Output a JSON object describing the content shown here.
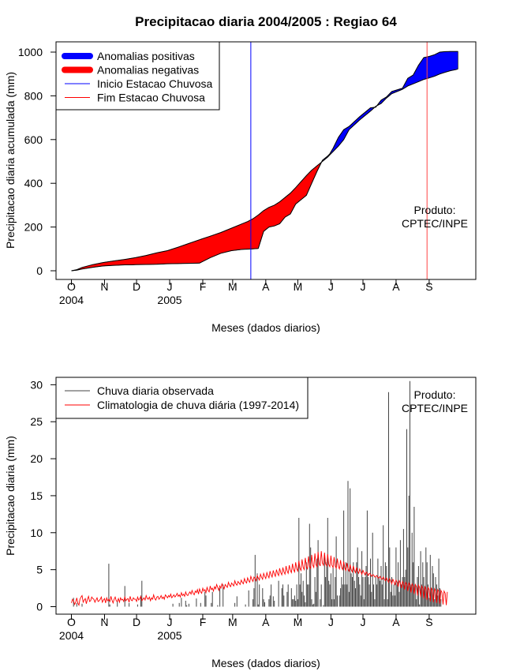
{
  "figure": {
    "title": "Precipitacao diaria 2004/2005 : Regiao 64"
  },
  "chart_data": [
    {
      "type": "area",
      "title": "Precipitacao diaria 2004/2005 : Regiao 64",
      "xlabel": "Meses (dados diarios)",
      "ylabel": "Precipitacao diaria acumulada (mm)",
      "x_unit": "day index since 1 Oct 2004",
      "xlim": [
        0,
        365
      ],
      "ylim": [
        0,
        1000
      ],
      "yticks": [
        0,
        200,
        400,
        600,
        800,
        1000
      ],
      "month_ticks": [
        "O",
        "N",
        "D",
        "J",
        "F",
        "M",
        "A",
        "M",
        "J",
        "J",
        "A",
        "S"
      ],
      "month_positions": [
        0,
        31,
        61,
        92,
        123,
        151,
        182,
        212,
        243,
        273,
        304,
        335
      ],
      "year_labels": [
        {
          "text": "2004",
          "day": 0
        },
        {
          "text": "2005",
          "day": 92
        }
      ],
      "legend": [
        {
          "label": "Anomalias positivas",
          "color": "#0000ff",
          "style": "thick"
        },
        {
          "label": "Anomalias negativas",
          "color": "#ff0000",
          "style": "thick"
        },
        {
          "label": "Inicio Estacao Chuvosa",
          "color": "#0000ff",
          "style": "line"
        },
        {
          "label": "Fim Estacao Chuvosa",
          "color": "#ff0000",
          "style": "line"
        }
      ],
      "legend_position": "top-left",
      "annotation": [
        "Produto:",
        "CPTEC/INPE"
      ],
      "vlines": [
        {
          "name": "Inicio Estacao Chuvosa",
          "day": 168,
          "color": "#0000ff"
        },
        {
          "name": "Fim Estacao Chuvosa",
          "day": 333,
          "color": "#ff4444"
        }
      ],
      "series": [
        {
          "name": "Precipitacao observada acumulada",
          "x": [
            0,
            5,
            10,
            20,
            30,
            40,
            50,
            55,
            60,
            70,
            80,
            90,
            100,
            110,
            120,
            130,
            140,
            150,
            160,
            165,
            170,
            175,
            180,
            185,
            190,
            195,
            200,
            205,
            210,
            220,
            225,
            230,
            235,
            240,
            242,
            245,
            250,
            255,
            260,
            270,
            280,
            285,
            290,
            295,
            300,
            310,
            315,
            320,
            325,
            330,
            335,
            340,
            345,
            350,
            355,
            360,
            362
          ],
          "y": [
            0,
            3,
            8,
            16,
            22,
            25,
            27,
            27,
            28,
            29,
            30,
            32,
            33,
            34,
            35,
            60,
            80,
            92,
            98,
            99,
            100,
            102,
            180,
            200,
            205,
            215,
            245,
            260,
            305,
            345,
            400,
            455,
            505,
            525,
            535,
            560,
            610,
            645,
            660,
            705,
            745,
            748,
            780,
            795,
            820,
            835,
            880,
            895,
            940,
            975,
            980,
            988,
            1000,
            1002,
            1003,
            1003,
            1003
          ]
        },
        {
          "name": "Climatologia acumulada",
          "x": [
            0,
            5,
            10,
            20,
            30,
            40,
            50,
            60,
            70,
            80,
            90,
            100,
            110,
            120,
            130,
            140,
            150,
            160,
            165,
            170,
            175,
            180,
            185,
            190,
            195,
            200,
            205,
            210,
            220,
            225,
            230,
            235,
            240,
            242,
            245,
            250,
            255,
            260,
            270,
            280,
            285,
            290,
            295,
            300,
            310,
            315,
            320,
            325,
            330,
            335,
            340,
            345,
            350,
            355,
            360,
            362
          ],
          "y": [
            0,
            5,
            15,
            28,
            38,
            45,
            52,
            60,
            70,
            82,
            92,
            108,
            125,
            142,
            158,
            175,
            195,
            215,
            225,
            238,
            255,
            275,
            290,
            300,
            315,
            335,
            355,
            380,
            435,
            460,
            480,
            500,
            520,
            530,
            545,
            570,
            600,
            645,
            690,
            730,
            752,
            765,
            790,
            810,
            830,
            845,
            855,
            865,
            875,
            882,
            890,
            900,
            908,
            915,
            920,
            923
          ]
        }
      ]
    },
    {
      "type": "bar",
      "xlabel": "Meses (dados diarios)",
      "ylabel": "Precipitacao diaria (mm)",
      "x_unit": "day index since 1 Oct 2004",
      "xlim": [
        0,
        365
      ],
      "ylim": [
        0,
        31
      ],
      "yticks": [
        0,
        5,
        10,
        15,
        20,
        25,
        30
      ],
      "month_ticks": [
        "O",
        "N",
        "D",
        "J",
        "F",
        "M",
        "A",
        "M",
        "J",
        "J",
        "A",
        "S"
      ],
      "month_positions": [
        0,
        31,
        61,
        92,
        123,
        151,
        182,
        212,
        243,
        273,
        304,
        335
      ],
      "year_labels": [
        {
          "text": "2004",
          "day": 0
        },
        {
          "text": "2005",
          "day": 92
        }
      ],
      "legend": [
        {
          "label": "Chuva diaria observada",
          "color": "#444444"
        },
        {
          "label": "Climatologia de chuva diária (1997-2014)",
          "color": "#ff0000"
        }
      ],
      "legend_position": "top-left",
      "annotation": [
        "Produto:",
        "CPTEC/INPE"
      ],
      "observed_daily": [
        0,
        0,
        1.2,
        0,
        0,
        0.5,
        0,
        0,
        0,
        0,
        0.4,
        0,
        0,
        0,
        0,
        0,
        0,
        0,
        0,
        0,
        0,
        0,
        0,
        0,
        0,
        0,
        0,
        0,
        0,
        0,
        0,
        0,
        0,
        0,
        0,
        5.8,
        0.3,
        0,
        0,
        0,
        0,
        0,
        0,
        0.7,
        0,
        0,
        0,
        0,
        0,
        0,
        2.8,
        0,
        0,
        0,
        0.5,
        0,
        0,
        0,
        0,
        0,
        0,
        0,
        0.3,
        0,
        0,
        1.5,
        3.5,
        0,
        0,
        0,
        0,
        0,
        0,
        0,
        0,
        0,
        0,
        0,
        0,
        0,
        0,
        0,
        0,
        0,
        0,
        0,
        0,
        0,
        0,
        0,
        0,
        0,
        0,
        0,
        0,
        0.4,
        0,
        0,
        0,
        0,
        0,
        0.5,
        0,
        1.2,
        0,
        0,
        0,
        0.8,
        0.2,
        0,
        0.4,
        0,
        0,
        0,
        0,
        0,
        0,
        1.1,
        0,
        0,
        0,
        0.5,
        0,
        0,
        0,
        2.0,
        1.5,
        0,
        0,
        0,
        0,
        0.5,
        2.0,
        0,
        0,
        0,
        0,
        0.2,
        0,
        2.5,
        0,
        0,
        3.0,
        0,
        0,
        0,
        0,
        0,
        0,
        0,
        0,
        0,
        0,
        0.5,
        0,
        1.4,
        0,
        0,
        0,
        0,
        0,
        0,
        0,
        0.3,
        0,
        0,
        2.2,
        0,
        0,
        0,
        1.0,
        2.5,
        7.0,
        0,
        4.5,
        0.3,
        3.0,
        0,
        0,
        2.5,
        1.0,
        0.6,
        0,
        0,
        0,
        1.0,
        1.5,
        3.0,
        0,
        1.4,
        0.8,
        0,
        0,
        0,
        3.5,
        0,
        0,
        2.5,
        3.0,
        1.5,
        0,
        0,
        2.0,
        3.0,
        0,
        0,
        2.5,
        1.0,
        1.0,
        1.5,
        0.8,
        3.0,
        1.0,
        12.0,
        3.0,
        4.5,
        2.0,
        3.5,
        1.5,
        0.6,
        6.0,
        3.0,
        3.0,
        11.2,
        8.0,
        1.0,
        0.3,
        0.4,
        4.0,
        2.0,
        6.5,
        9.0,
        0,
        1.0,
        3.0,
        0,
        0.2,
        7.0,
        4.0,
        6.0,
        12.0,
        3.5,
        3.0,
        4.5,
        1.0,
        5.5,
        1.0,
        4.0,
        9.5,
        1.5,
        0,
        1.5,
        2.5,
        4.0,
        3.0,
        13.0,
        3.0,
        6.0,
        3.0,
        17.0,
        2.0,
        16.0,
        4.5,
        4.0,
        6.0,
        3.5,
        2.5,
        6.0,
        8.0,
        4.0,
        3.0,
        1.5,
        7.5,
        4.0,
        1.0,
        4.0,
        5.5,
        13.0,
        4.0,
        3.0,
        6.5,
        2.0,
        10.0,
        3.0,
        1.0,
        4.0,
        3.0,
        6.5,
        4.0,
        3.5,
        5.5,
        3.0,
        11.0,
        1.0,
        6.0,
        5.5,
        1.0,
        29.0,
        8.0,
        2.0,
        4.0,
        1.5,
        3.0,
        1.5,
        8.0,
        3.0,
        6.0,
        2.0,
        9.0,
        3.0,
        4.0,
        10.5,
        4.0,
        5.0,
        24.0,
        8.0,
        15.0,
        30.5,
        3.0,
        10.0,
        6.0,
        13.5,
        3.0,
        1.0,
        4.0,
        5.5,
        0.3,
        7.5,
        3.0,
        6.0,
        4.0,
        2.5,
        8.0,
        6.0,
        3.0,
        1.2,
        7.0,
        2.5,
        5.5,
        4.5,
        1.0,
        4.0,
        3.0,
        1.5,
        6.5,
        2.5,
        1.0
      ],
      "climatology_daily": [
        0.5,
        1.0,
        0.8,
        0.3,
        0.6,
        1.2,
        0.5,
        0.2,
        1.0,
        1.3,
        1.5,
        0.6,
        0.9,
        1.1,
        0.4,
        1.0,
        1.4,
        0.7,
        0.8,
        1.3,
        1.1,
        1.0,
        0.6,
        0.9,
        1.2,
        0.7,
        0.8,
        1.0,
        1.3,
        0.6,
        0.9,
        1.1,
        0.5,
        1.2,
        0.8,
        1.0,
        0.7,
        1.4,
        0.9,
        0.5,
        1.0,
        1.3,
        0.8,
        0.7,
        1.1,
        0.6,
        1.2,
        0.9,
        1.0,
        0.7,
        1.3,
        0.8,
        1.0,
        1.1,
        0.6,
        1.4,
        0.9,
        0.8,
        1.2,
        1.0,
        1.0,
        0.7,
        1.3,
        0.9,
        1.1,
        1.4,
        0.8,
        1.0,
        1.2,
        0.9,
        1.5,
        1.1,
        1.0,
        1.3,
        0.8,
        1.2,
        1.0,
        1.6,
        1.1,
        0.9,
        1.3,
        1.4,
        1.0,
        1.2,
        1.5,
        1.1,
        1.3,
        1.0,
        1.6,
        1.4,
        1.2,
        1.5,
        1.3,
        1.7,
        1.2,
        1.4,
        1.6,
        1.3,
        1.5,
        1.8,
        1.4,
        1.6,
        1.3,
        1.9,
        1.5,
        1.7,
        1.4,
        2.0,
        1.6,
        1.5,
        1.8,
        2.0,
        1.7,
        2.2,
        1.8,
        1.6,
        2.1,
        1.9,
        2.3,
        1.7,
        2.4,
        2.0,
        1.8,
        2.5,
        2.1,
        2.3,
        1.9,
        2.6,
        2.2,
        2.0,
        2.8,
        2.3,
        2.5,
        2.1,
        2.7,
        2.4,
        3.0,
        2.6,
        2.2,
        2.8,
        2.5,
        3.1,
        2.7,
        2.4,
        3.0,
        2.8,
        2.6,
        3.3,
        2.9,
        2.7,
        3.2,
        3.0,
        2.8,
        3.5,
        3.1,
        2.9,
        3.4,
        3.2,
        3.0,
        3.6,
        3.3,
        3.1,
        3.8,
        3.4,
        3.2,
        3.9,
        3.5,
        3.3,
        4.1,
        3.7,
        3.4,
        4.0,
        3.8,
        3.5,
        4.2,
        3.9,
        3.6,
        4.4,
        4.0,
        3.7,
        4.5,
        4.1,
        3.8,
        4.6,
        4.2,
        3.9,
        4.8,
        4.3,
        4.0,
        4.9,
        4.4,
        4.1,
        5.0,
        4.5,
        4.2,
        5.2,
        4.6,
        4.3,
        5.3,
        4.7,
        4.4,
        5.5,
        4.8,
        4.5,
        5.6,
        4.9,
        4.6,
        5.8,
        5.0,
        4.7,
        6.0,
        5.1,
        4.8,
        6.2,
        5.2,
        4.9,
        6.4,
        5.3,
        5.0,
        6.6,
        5.4,
        5.1,
        6.8,
        5.5,
        5.2,
        7.0,
        5.6,
        5.3,
        7.2,
        5.7,
        5.4,
        7.4,
        5.8,
        5.5,
        7.5,
        5.9,
        5.6,
        7.3,
        5.8,
        5.5,
        7.1,
        5.7,
        5.4,
        6.9,
        5.6,
        5.3,
        6.7,
        5.5,
        5.2,
        6.5,
        5.4,
        5.1,
        6.3,
        5.3,
        5.0,
        6.1,
        5.2,
        4.9,
        5.9,
        5.1,
        4.8,
        5.7,
        5.0,
        4.7,
        5.5,
        4.9,
        4.6,
        5.3,
        4.8,
        4.5,
        5.1,
        4.7,
        4.4,
        4.9,
        4.6,
        4.3,
        4.7,
        4.5,
        4.2,
        4.5,
        4.4,
        4.1,
        4.3,
        4.3,
        4.0,
        4.1,
        4.2,
        3.9,
        3.9,
        4.1,
        3.8,
        3.7,
        4.0,
        3.7,
        3.5,
        3.9,
        3.6,
        3.3,
        3.8,
        3.5,
        3.1,
        3.7,
        3.4,
        2.9,
        3.6,
        3.3,
        2.7,
        3.5,
        3.2,
        2.5,
        3.4,
        3.1,
        2.3,
        3.3,
        3.0,
        2.1,
        3.2,
        2.9,
        1.9,
        3.1,
        2.8,
        1.7,
        3.0,
        2.7,
        1.5,
        2.9,
        2.6,
        1.3,
        2.8,
        2.5,
        1.1,
        2.7,
        2.4,
        0.9,
        2.6,
        2.3,
        0.7,
        2.5,
        2.2,
        0.6,
        2.4,
        2.1,
        0.5,
        2.3,
        2.0,
        0.4,
        2.2,
        1.9,
        0.3,
        2.1,
        1.8,
        0.2,
        2.0
      ]
    }
  ]
}
